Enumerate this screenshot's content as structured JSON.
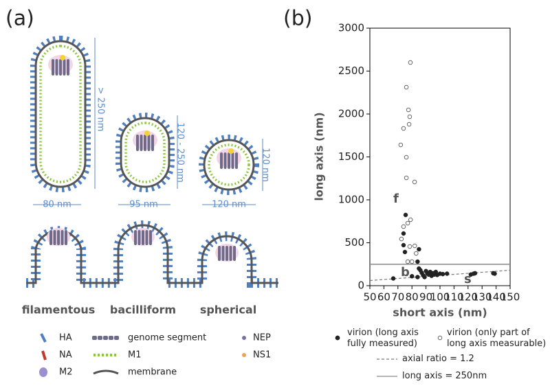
{
  "panel_labels": [
    "(a)",
    "(b)"
  ],
  "diagram": {
    "heights": [
      "> 250 nm",
      "120 - 250 nm",
      "120 nm"
    ],
    "widths": [
      "80 nm",
      "95 nm",
      "120 nm"
    ],
    "morphologies": [
      "filamentous",
      "bacilliform",
      "spherical"
    ],
    "legend": [
      "HA",
      "NA",
      "M2",
      "genome segment",
      "M1",
      "membrane",
      "NEP",
      "NS1"
    ]
  },
  "chart_data": {
    "type": "scatter",
    "xlabel": "short axis (nm)",
    "ylabel": "long axis (nm)",
    "xlim": [
      50,
      150
    ],
    "ylim": [
      0,
      3000
    ],
    "xticks": [
      50,
      60,
      70,
      80,
      90,
      100,
      110,
      120,
      130,
      140,
      150
    ],
    "yticks": [
      0,
      500,
      1000,
      1500,
      2000,
      2500,
      3000
    ],
    "annotations": [
      "f",
      "b",
      "s"
    ],
    "series": [
      {
        "name": "virion (long axis fully measured)",
        "marker": "filled",
        "color": "#222222",
        "x": [
          75.5,
          74,
          74,
          75,
          85,
          84,
          85,
          66.7,
          80,
          84,
          86,
          87,
          88,
          89,
          90,
          91,
          92,
          93,
          94,
          95,
          96,
          97,
          98,
          100,
          102,
          105,
          122,
          124,
          125,
          138,
          139
        ],
        "values": [
          824,
          608,
          472,
          392,
          424,
          280,
          200,
          84,
          110,
          100,
          180,
          150,
          120,
          100,
          170,
          140,
          130,
          160,
          115,
          145,
          130,
          160,
          125,
          140,
          135,
          140,
          130,
          140,
          145,
          145,
          140
        ]
      },
      {
        "name": "virion (only part of long axis measurable)",
        "marker": "open",
        "color": "#444444",
        "x": [
          78.9,
          76,
          77.5,
          78.4,
          74,
          78,
          72,
          76,
          76,
          81.9,
          74,
          77,
          79,
          72.5,
          78.4,
          82,
          77,
          80,
          83
        ],
        "values": [
          2600,
          2312,
          2048,
          1968,
          1832,
          1880,
          1640,
          1496,
          1256,
          1208,
          688,
          728,
          768,
          544,
          456,
          464,
          280,
          280,
          376
        ]
      }
    ],
    "reference_lines": [
      {
        "name": "axial ratio = 1.2",
        "ratio": 1.2,
        "style": "dashed",
        "color": "#777777"
      },
      {
        "name": "long axis = 250nm",
        "y": 250,
        "style": "solid",
        "color": "#888888"
      }
    ]
  }
}
